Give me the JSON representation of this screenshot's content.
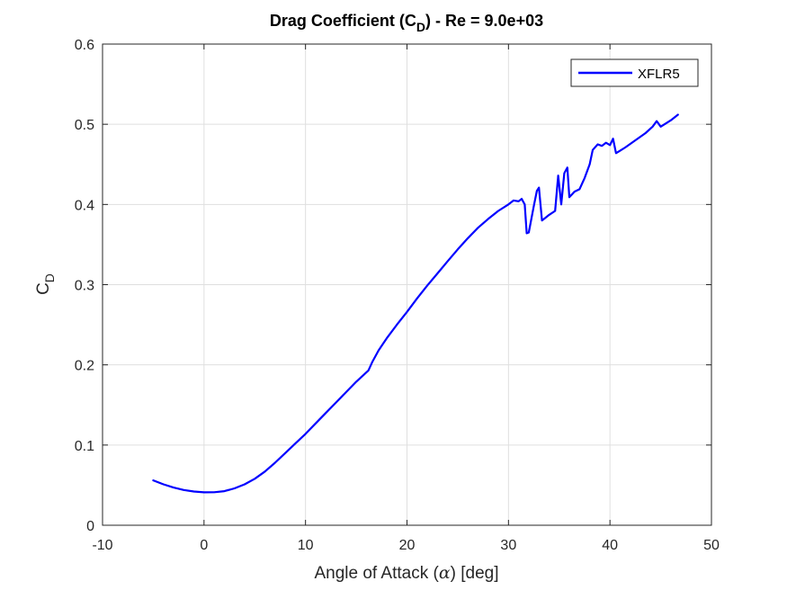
{
  "chart_data": {
    "type": "line",
    "title": {
      "main": "Drag Coefficient (C",
      "sub": "D",
      "rest": ") - Re = 9.0e+03"
    },
    "xlabel": {
      "pre": "Angle of Attack (",
      "symbol": "α",
      "post": ") [deg]"
    },
    "ylabel": {
      "main": "C",
      "sub": "D"
    },
    "xlim": [
      -10,
      50
    ],
    "ylim": [
      0,
      0.6
    ],
    "xticks": [
      -10,
      0,
      10,
      20,
      30,
      40,
      50
    ],
    "yticks": [
      0,
      0.1,
      0.2,
      0.3,
      0.4,
      0.5,
      0.6
    ],
    "xtick_labels": [
      "-10",
      "0",
      "10",
      "20",
      "30",
      "40",
      "50"
    ],
    "ytick_labels": [
      "0",
      "0.1",
      "0.2",
      "0.3",
      "0.4",
      "0.5",
      "0.6"
    ],
    "grid": true,
    "legend_position": "top-right",
    "series": [
      {
        "name": "XFLR5",
        "color": "#0000ff",
        "x": [
          -5,
          -4,
          -3,
          -2,
          -1,
          0,
          1,
          2,
          3,
          4,
          5,
          6,
          7,
          8,
          9,
          10,
          11,
          12,
          13,
          14,
          15,
          16.2,
          16.6,
          17.2,
          18,
          19,
          20,
          21,
          22,
          23,
          24,
          25,
          26,
          27,
          28,
          29,
          30,
          30.5,
          31,
          31.3,
          31.6,
          31.8,
          32.0,
          32.5,
          32.8,
          33.0,
          33.3,
          33.6,
          34.0,
          34.6,
          34.9,
          35.2,
          35.5,
          35.8,
          36.0,
          36.5,
          37.0,
          37.5,
          38.0,
          38.3,
          38.8,
          39.2,
          39.6,
          40.0,
          40.3,
          40.6,
          41.0,
          41.5,
          42.5,
          43.5,
          44.2,
          44.6,
          45.0,
          45.5,
          46.0,
          46.7
        ],
        "y": [
          0.056,
          0.051,
          0.047,
          0.044,
          0.042,
          0.041,
          0.0412,
          0.0425,
          0.046,
          0.051,
          0.058,
          0.067,
          0.078,
          0.09,
          0.102,
          0.114,
          0.127,
          0.14,
          0.153,
          0.166,
          0.179,
          0.193,
          0.204,
          0.218,
          0.233,
          0.25,
          0.266,
          0.283,
          0.299,
          0.314,
          0.329,
          0.344,
          0.358,
          0.371,
          0.382,
          0.392,
          0.4,
          0.405,
          0.404,
          0.407,
          0.4,
          0.364,
          0.365,
          0.398,
          0.417,
          0.421,
          0.38,
          0.383,
          0.387,
          0.392,
          0.436,
          0.4,
          0.439,
          0.446,
          0.409,
          0.416,
          0.419,
          0.433,
          0.45,
          0.468,
          0.475,
          0.473,
          0.477,
          0.474,
          0.482,
          0.464,
          0.467,
          0.471,
          0.48,
          0.489,
          0.497,
          0.504,
          0.497,
          0.501,
          0.505,
          0.512
        ]
      }
    ]
  }
}
